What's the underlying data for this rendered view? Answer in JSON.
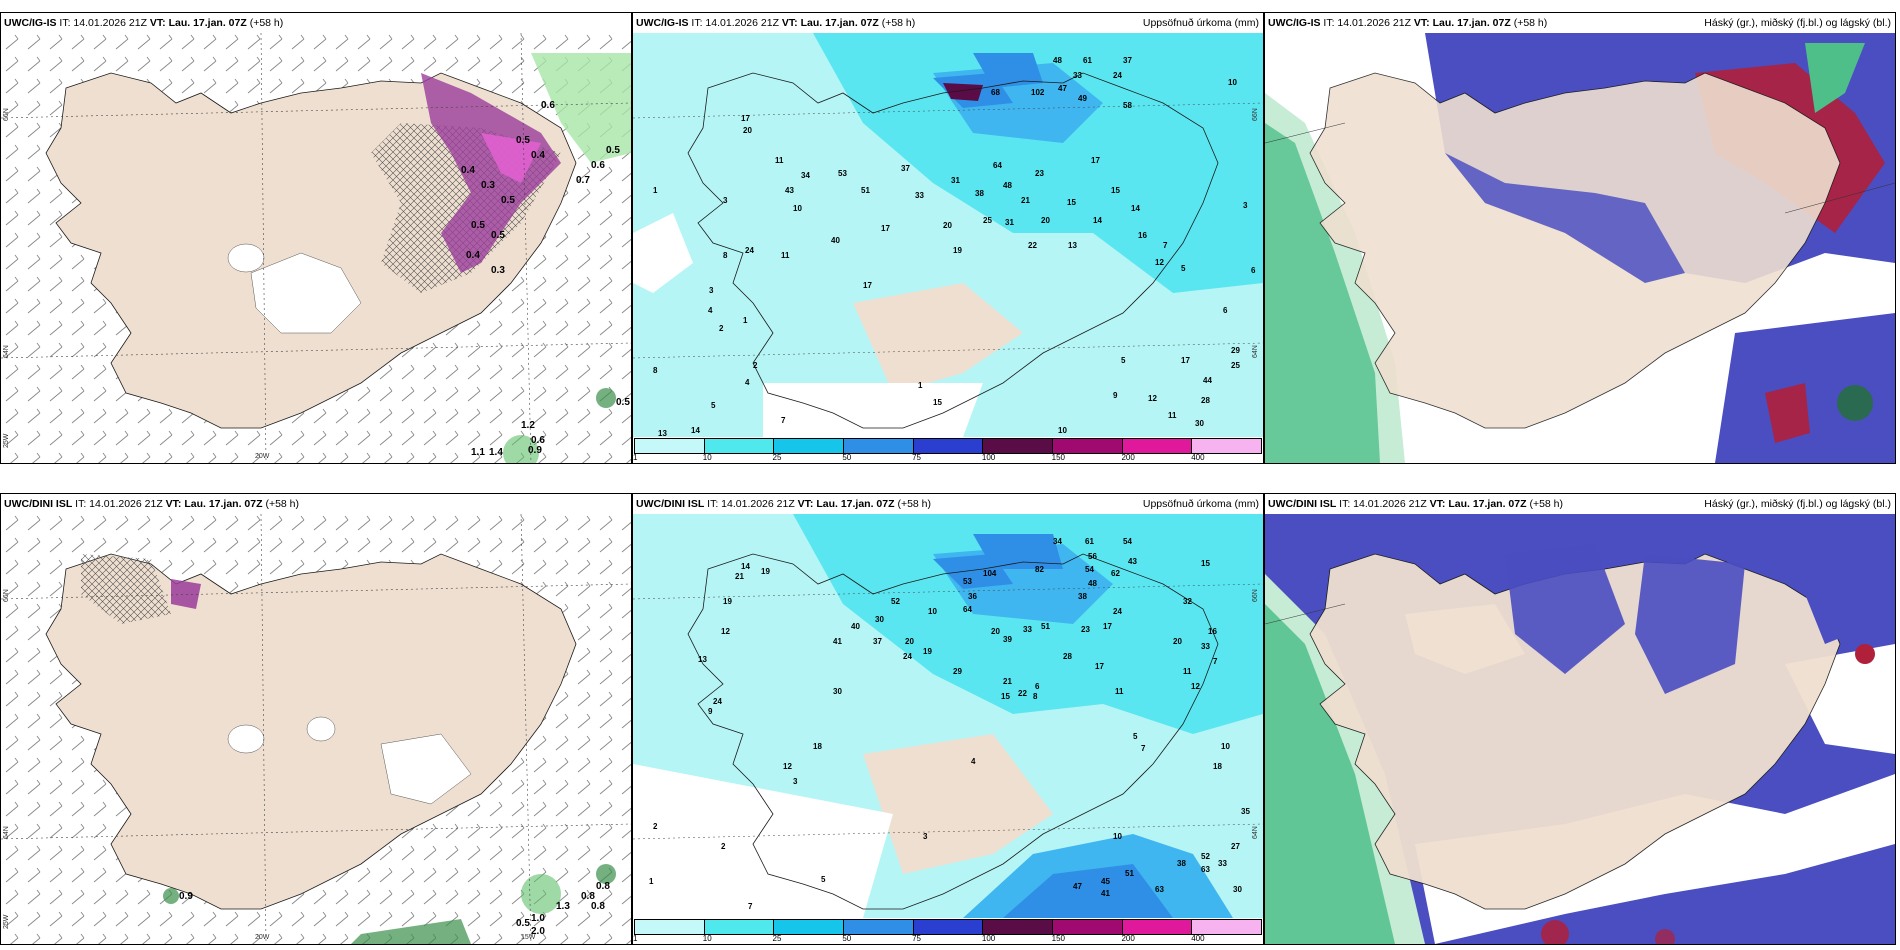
{
  "colors": {
    "land": "#efdfd0",
    "coast": "#1a1a1a",
    "precip_light": "#b5f5f5",
    "precip_mid": "#5ae6f0",
    "precip_blue": "#3fb6f0",
    "cloud_high_green": "#4fbf8a",
    "cloud_mid_red": "#b0203a",
    "cloud_low_blue": "#4a4ec0",
    "snow_purple": "#9a3d9a"
  },
  "panels": {
    "p1": {
      "model": "UWC/IG-IS",
      "it_text": " IT: 14.01.2026 21Z ",
      "vt_text": "VT: Lau. 17.jan. 07Z",
      "lead": " (+58 h)",
      "field": "",
      "lat_labels": [
        "66N",
        "64N"
      ],
      "lon_labels": [
        "25W",
        "20W"
      ],
      "values": [
        "0.6",
        "0.4",
        "0.3",
        "0.5",
        "0.7",
        "0.5",
        "0.6",
        "0.5",
        "0.4",
        "0.5",
        "0.4",
        "0.3",
        "0.5",
        "1.2",
        "0.6",
        "0.9",
        "1.1",
        "1.4",
        "0.5"
      ]
    },
    "p2": {
      "model": "UWC/IG-IS",
      "it_text": " IT: 14.01.2026 21Z ",
      "vt_text": "VT: Lau. 17.jan. 07Z",
      "lead": " (+58 h)",
      "field": "Uppsöfnuð úrkoma (mm)",
      "lat_labels": [
        "66N",
        "64N"
      ],
      "values": [
        "48",
        "61",
        "37",
        "24",
        "33",
        "68",
        "102",
        "47",
        "49",
        "58",
        "10",
        "17",
        "20",
        "11",
        "34",
        "43",
        "53",
        "51",
        "37",
        "33",
        "31",
        "38",
        "48",
        "23",
        "17",
        "64",
        "15",
        "14",
        "10",
        "17",
        "20",
        "25",
        "31",
        "20",
        "15",
        "14",
        "40",
        "21",
        "22",
        "13",
        "16",
        "8",
        "24",
        "19",
        "11",
        "7",
        "12",
        "17",
        "5",
        "3",
        "2",
        "1",
        "3",
        "4",
        "1",
        "2",
        "8",
        "4",
        "5",
        "7",
        "14",
        "13",
        "1",
        "15",
        "9",
        "12",
        "11",
        "10",
        "30",
        "28",
        "44",
        "25",
        "17",
        "29",
        "5",
        "6",
        "3",
        "6"
      ]
    },
    "p3": {
      "model": "UWC/IG-IS",
      "it_text": " IT: 14.01.2026 21Z ",
      "vt_text": "VT: Lau. 17.jan. 07Z",
      "lead": " (+58 h)",
      "field": "Háský (gr.), miðský (fj.bl.) og lágský (bl.)"
    },
    "p4": {
      "model": "UWC/DINI ISL",
      "it_text": " IT: 14.01.2026 21Z ",
      "vt_text": "VT: Lau. 17.jan. 07Z",
      "lead": " (+58 h)",
      "field": "",
      "lat_labels": [
        "66N",
        "64N"
      ],
      "lon_labels": [
        "25W",
        "20W",
        "15W"
      ],
      "values": [
        "0.9",
        "0.8",
        "0.8",
        "1.3",
        "0.8",
        "1.0",
        "2.0",
        "0.5"
      ]
    },
    "p5": {
      "model": "UWC/DINI ISL",
      "it_text": " IT: 14.01.2026 21Z ",
      "vt_text": "VT: Lau. 17.jan. 07Z",
      "lead": " (+58 h)",
      "field": "Uppsöfnuð úrkoma (mm)",
      "lat_labels": [
        "66N",
        "64N"
      ],
      "values": [
        "34",
        "61",
        "54",
        "56",
        "43",
        "15",
        "104",
        "82",
        "54",
        "62",
        "14",
        "19",
        "48",
        "38",
        "52",
        "30",
        "10",
        "53",
        "36",
        "64",
        "24",
        "32",
        "51",
        "20",
        "39",
        "33",
        "23",
        "17",
        "40",
        "37",
        "41",
        "20",
        "19",
        "24",
        "28",
        "17",
        "20",
        "16",
        "33",
        "29",
        "12",
        "19",
        "21",
        "11",
        "7",
        "24",
        "15",
        "13",
        "30",
        "21",
        "22",
        "6",
        "12",
        "9",
        "18",
        "12",
        "11",
        "8",
        "5",
        "4",
        "10",
        "7",
        "3",
        "2",
        "1",
        "2",
        "5",
        "7",
        "3",
        "10",
        "47",
        "45",
        "51",
        "41",
        "63",
        "52",
        "38",
        "63",
        "33",
        "27",
        "30",
        "35",
        "18"
      ]
    },
    "p6": {
      "model": "UWC/DINI ISL",
      "it_text": " IT: 14.01.2026 21Z ",
      "vt_text": "VT: Lau. 17.jan. 07Z",
      "lead": " (+58 h)",
      "field": "Háský (gr.), miðský (fj.bl.) og lágský (bl.)"
    }
  },
  "colorbar": {
    "labels": [
      "1",
      "10",
      "25",
      "50",
      "75",
      "100",
      "150",
      "200",
      "400"
    ],
    "colors": [
      "#c5f8f8",
      "#4fe8ec",
      "#15c5ea",
      "#2f8fe6",
      "#2a3fd0",
      "#5a0c47",
      "#a00a70",
      "#e0189c",
      "#f7b3ef"
    ]
  }
}
